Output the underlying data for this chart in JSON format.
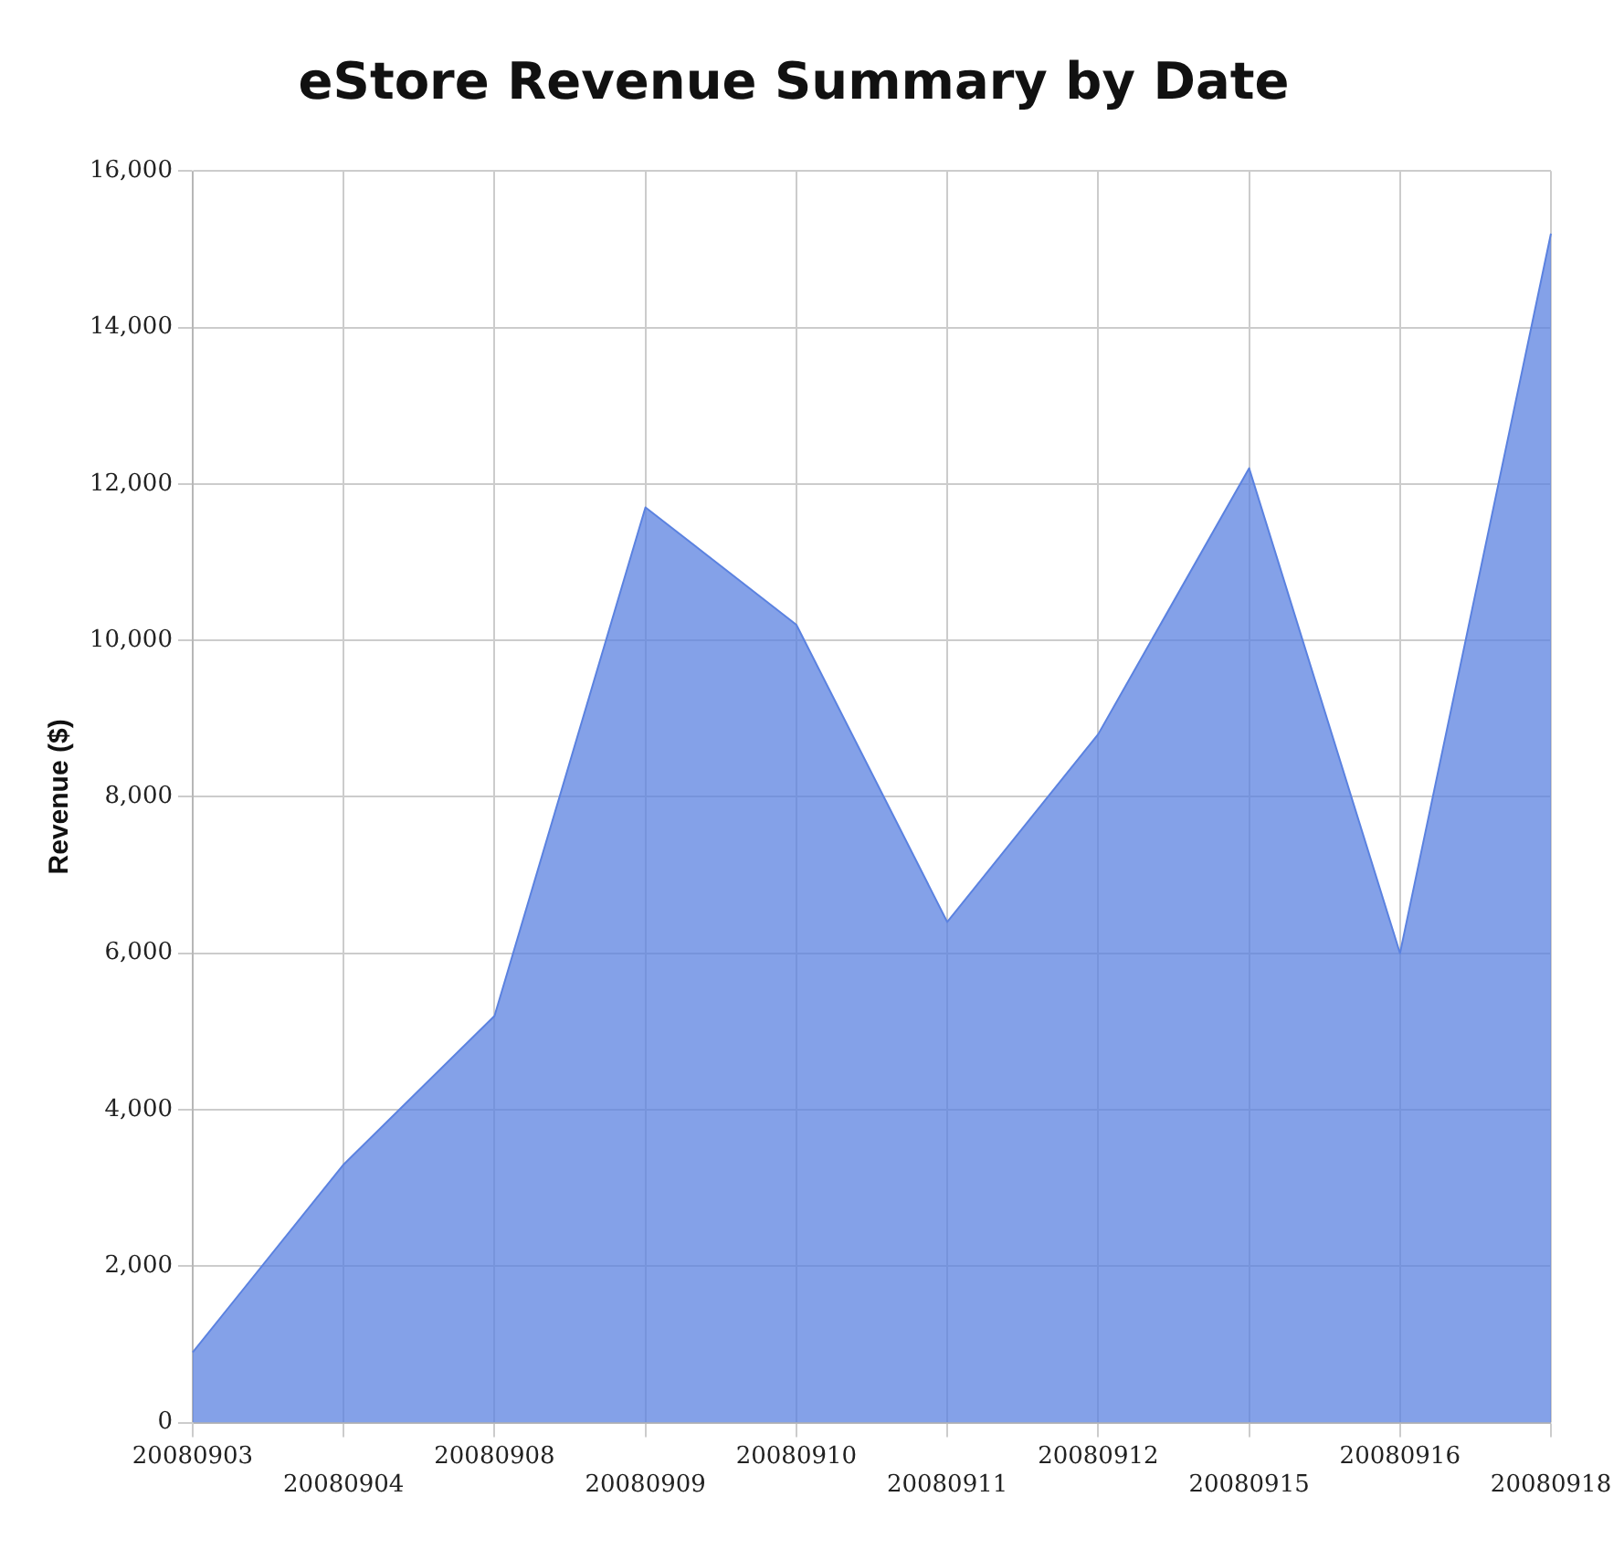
{
  "chart_data": {
    "type": "area",
    "title": "eStore Revenue Summary by Date",
    "ylabel": "Revenue ($)",
    "categories": [
      "20080903",
      "20080904",
      "20080908",
      "20080909",
      "20080910",
      "20080911",
      "20080912",
      "20080915",
      "20080916",
      "20080918"
    ],
    "series": [
      {
        "color": "#5b82e0",
        "values": [
          900,
          3300,
          5200,
          11700,
          10200,
          6400,
          8800,
          12200,
          6000,
          15200
        ]
      }
    ],
    "ylim": [
      0,
      16000
    ],
    "yticks": [
      {
        "value": 0,
        "label": "0"
      },
      {
        "value": 2000,
        "label": "2,000"
      },
      {
        "value": 4000,
        "label": "4,000"
      },
      {
        "value": 6000,
        "label": "6,000"
      },
      {
        "value": 8000,
        "label": "8,000"
      },
      {
        "value": 10000,
        "label": "10,000"
      },
      {
        "value": 12000,
        "label": "12,000"
      },
      {
        "value": 14000,
        "label": "14,000"
      },
      {
        "value": 16000,
        "label": "16,000"
      }
    ],
    "grid": true,
    "legend": false
  }
}
